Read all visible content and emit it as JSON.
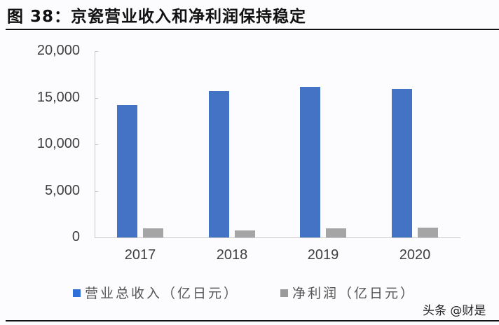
{
  "title": "图 38：京瓷营业收入和净利润保持稳定",
  "watermark": "头条 @财是",
  "colors": {
    "revenue": "#4472c4",
    "net_profit": "#a5a5a5",
    "legend_revenue": "#2f6fd8",
    "legend_profit": "#9a9a9a"
  },
  "chart_data": {
    "type": "bar",
    "title": "图 38：京瓷营业收入和净利润保持稳定",
    "categories": [
      "2017",
      "2018",
      "2019",
      "2020"
    ],
    "series": [
      {
        "name": "营业总收入（亿日元）",
        "values": [
          14200,
          15700,
          16200,
          15950
        ]
      },
      {
        "name": "净利润（亿日元）",
        "values": [
          980,
          750,
          980,
          1050
        ]
      }
    ],
    "xlabel": "",
    "ylabel": "",
    "ylim": [
      0,
      20000
    ],
    "yticks": [
      "0",
      "5,000",
      "10,000",
      "15,000",
      "20,000"
    ],
    "grid": false,
    "legend_position": "bottom"
  },
  "legend": [
    {
      "label": "营业总收入（亿日元）"
    },
    {
      "label": "净利润（亿日元）"
    }
  ]
}
